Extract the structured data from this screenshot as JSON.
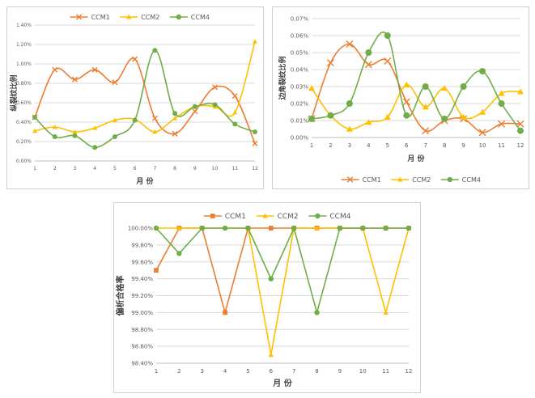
{
  "chart_data": [
    {
      "type": "line",
      "title": "",
      "xlabel": "月 份",
      "ylabel": "纵裂纹比例",
      "x": [
        1,
        2,
        3,
        4,
        5,
        6,
        7,
        8,
        9,
        10,
        11,
        12
      ],
      "ylim": [
        0,
        1.4
      ],
      "y_ticks": [
        "0.00%",
        "0.20%",
        "0.40%",
        "0.60%",
        "0.80%",
        "1.00%",
        "1.20%",
        "1.40%"
      ],
      "legend_position": "top",
      "smooth": true,
      "series": [
        {
          "name": "CCM1",
          "color": "#ed7d31",
          "marker": "x",
          "values": [
            0.45,
            0.94,
            0.84,
            0.94,
            0.81,
            1.05,
            0.44,
            0.28,
            0.51,
            0.76,
            0.67,
            0.18
          ]
        },
        {
          "name": "CCM2",
          "color": "#ffc000",
          "marker": "triangle",
          "values": [
            0.31,
            0.35,
            0.3,
            0.34,
            0.42,
            0.43,
            0.3,
            0.44,
            0.56,
            0.56,
            0.5,
            1.23
          ]
        },
        {
          "name": "CCM4",
          "color": "#70ad47",
          "marker": "circle",
          "values": [
            0.45,
            0.25,
            0.26,
            0.14,
            0.25,
            0.42,
            1.14,
            0.49,
            0.56,
            0.58,
            0.38,
            0.3
          ]
        }
      ]
    },
    {
      "type": "line",
      "title": "",
      "xlabel": "月 份",
      "ylabel": "边角裂纹比例",
      "x": [
        1,
        2,
        3,
        4,
        5,
        6,
        7,
        8,
        9,
        10,
        11,
        12
      ],
      "ylim": [
        0,
        0.07
      ],
      "y_ticks": [
        "0.00%",
        "0.01%",
        "0.02%",
        "0.03%",
        "0.04%",
        "0.05%",
        "0.06%",
        "0.07%"
      ],
      "legend_position": "bottom",
      "smooth": true,
      "series": [
        {
          "name": "CCM1",
          "color": "#ed7d31",
          "marker": "x",
          "values": [
            0.011,
            0.044,
            0.055,
            0.043,
            0.045,
            0.021,
            0.004,
            0.01,
            0.011,
            0.003,
            0.008,
            0.008
          ]
        },
        {
          "name": "CCM2",
          "color": "#ffc000",
          "marker": "triangle",
          "values": [
            0.029,
            0.013,
            0.005,
            0.009,
            0.012,
            0.031,
            0.018,
            0.029,
            0.012,
            0.015,
            0.026,
            0.027
          ]
        },
        {
          "name": "CCM4",
          "color": "#70ad47",
          "marker": "circle",
          "values": [
            0.011,
            0.013,
            0.02,
            0.05,
            0.06,
            0.013,
            0.03,
            0.011,
            0.03,
            0.039,
            0.02,
            0.004
          ]
        }
      ]
    },
    {
      "type": "line",
      "title": "",
      "xlabel": "月 份",
      "ylabel": "偏析合格率",
      "x": [
        1,
        2,
        3,
        4,
        5,
        6,
        7,
        8,
        9,
        10,
        11,
        12
      ],
      "ylim": [
        98.4,
        100.0
      ],
      "y_ticks": [
        "98.40%",
        "98.60%",
        "98.80%",
        "99.00%",
        "99.20%",
        "99.40%",
        "99.60%",
        "99.80%",
        "100.00%"
      ],
      "legend_position": "top",
      "smooth": false,
      "series": [
        {
          "name": "CCM1",
          "color": "#ed7d31",
          "marker": "square",
          "values": [
            99.5,
            100,
            100,
            99.0,
            100,
            100,
            100,
            100,
            100,
            100,
            100,
            100
          ]
        },
        {
          "name": "CCM2",
          "color": "#ffc000",
          "marker": "triangle",
          "values": [
            100,
            100,
            100,
            100,
            100,
            98.5,
            100,
            100,
            100,
            100,
            99.0,
            100
          ]
        },
        {
          "name": "CCM4",
          "color": "#70ad47",
          "marker": "circle",
          "values": [
            100,
            99.7,
            100,
            100,
            100,
            99.4,
            100,
            99.0,
            100,
            100,
            100,
            100
          ]
        }
      ]
    }
  ]
}
